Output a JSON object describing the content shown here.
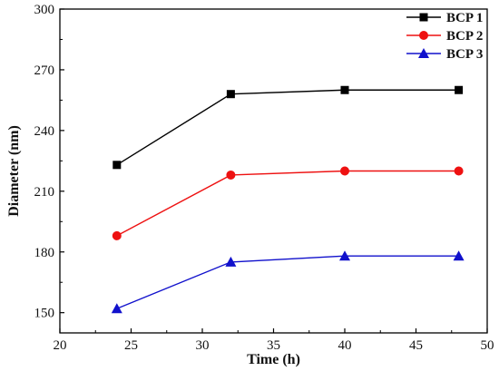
{
  "chart_data": {
    "type": "line",
    "xlabel": "Time (h)",
    "ylabel": "Diameter (nm)",
    "xlim": [
      20,
      50
    ],
    "ylim": [
      140,
      300
    ],
    "xticks": [
      20,
      25,
      30,
      35,
      40,
      45,
      50
    ],
    "yticks": [
      150,
      180,
      210,
      240,
      270,
      300
    ],
    "x": [
      24,
      32,
      40,
      48
    ],
    "legend_position": "top-right",
    "grid": false,
    "series": [
      {
        "name": "BCP 1",
        "color": "#000000",
        "marker": "square",
        "values": [
          223,
          258,
          260,
          260
        ]
      },
      {
        "name": "BCP 2",
        "color": "#ee1111",
        "marker": "circle",
        "values": [
          188,
          218,
          220,
          220
        ]
      },
      {
        "name": "BCP 3",
        "color": "#1111cc",
        "marker": "triangle",
        "values": [
          152,
          175,
          178,
          178
        ]
      }
    ]
  }
}
